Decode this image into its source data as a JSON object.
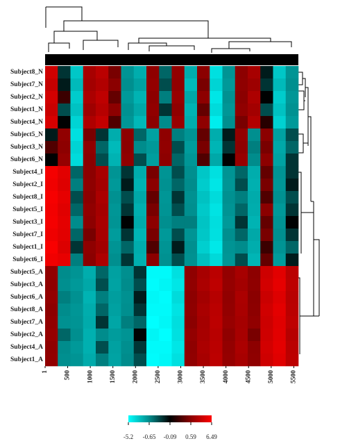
{
  "chart_data": {
    "type": "heatmap",
    "rows": [
      "Subject8_N",
      "Subject7_N",
      "Subject2_N",
      "Subject1_N",
      "Subject4_N",
      "Subject5_N",
      "Subject3_N",
      "Subject6_N",
      "Subject4_I",
      "Subject2_I",
      "Subject8_I",
      "Subject5_I",
      "Subject3_I",
      "Subject7_I",
      "Subject1_I",
      "Subject6_I",
      "Subject5_A",
      "Subject3_A",
      "Subject6_A",
      "Subject8_A",
      "Subject7_A",
      "Subject2_A",
      "Subject4_A",
      "Subject1_A"
    ],
    "bins": [
      1,
      281,
      561,
      841,
      1121,
      1401,
      1681,
      1961,
      2241,
      2521,
      2801,
      3081,
      3361,
      3641,
      3921,
      4201,
      4481,
      4761,
      5041,
      5321,
      5601
    ],
    "xlim": [
      1,
      5601
    ],
    "xticks": [
      1,
      500,
      1000,
      1500,
      2000,
      2500,
      3000,
      3500,
      4000,
      4500,
      5000,
      5500
    ],
    "values": [
      [
        4,
        -0.3,
        -3,
        2,
        3,
        0.5,
        -1,
        -2,
        0.8,
        -0.5,
        1,
        -2,
        0.6,
        -4,
        -1,
        0.7,
        2,
        -0.2,
        -3,
        -1
      ],
      [
        3.5,
        -0.2,
        -2.5,
        1.8,
        2.5,
        0.6,
        -0.8,
        -1.5,
        1,
        -0.4,
        0.9,
        -2.5,
        0.5,
        -3.5,
        -1.2,
        0.8,
        1.5,
        -0.3,
        -2.5,
        -0.8
      ],
      [
        4.2,
        0.2,
        -3.2,
        2.2,
        3.2,
        0.4,
        -1.2,
        -2.2,
        0.7,
        -0.6,
        1.2,
        -1.8,
        0.7,
        -4.2,
        -0.9,
        0.6,
        2.3,
        -0.1,
        -3.2,
        -1.1
      ],
      [
        3.8,
        -0.4,
        -2.8,
        1.6,
        2.8,
        0.7,
        -0.9,
        -1.8,
        0.9,
        -0.3,
        0.8,
        -2.2,
        0.4,
        -3.8,
        -1.1,
        0.9,
        1.8,
        -0.4,
        -2.8,
        -0.9
      ],
      [
        4.5,
        -0.1,
        -3.5,
        2.4,
        3.5,
        0.3,
        -1.1,
        -2.4,
        0.6,
        -0.7,
        1.3,
        -2,
        0.8,
        -4.5,
        -0.8,
        0.5,
        2.5,
        0.1,
        -3.4,
        -1.2
      ],
      [
        -0.2,
        0.9,
        -4,
        0.5,
        -0.3,
        -2,
        0.7,
        -0.5,
        -1.5,
        0.8,
        -0.6,
        -1,
        0.4,
        -2,
        -0.2,
        1,
        -0.8,
        0.6,
        -1.5,
        -0.4
      ],
      [
        0.3,
        0.7,
        -3.5,
        0.8,
        -0.5,
        -2.5,
        0.6,
        -0.7,
        -1.2,
        0.9,
        -0.4,
        -1.3,
        0.5,
        -2.3,
        -0.3,
        0.8,
        -0.6,
        0.5,
        -1.8,
        -0.5
      ],
      [
        -0.1,
        1.1,
        -3.8,
        0.6,
        -0.4,
        -2.2,
        0.8,
        -0.4,
        -1.4,
        0.7,
        -0.5,
        -1.1,
        0.3,
        -1.8,
        -0.1,
        1.2,
        -0.7,
        0.7,
        -1.6,
        -0.3
      ],
      [
        6,
        5,
        -0.5,
        0.7,
        2,
        -1,
        -0.3,
        -2,
        0.5,
        -1,
        -0.4,
        -0.8,
        -3,
        -4,
        -1,
        -0.5,
        -2,
        0.4,
        -1,
        -0.3
      ],
      [
        5.8,
        4.8,
        -0.6,
        0.8,
        1.8,
        -1.2,
        -0.2,
        -2.2,
        0.6,
        -0.9,
        -0.5,
        -0.7,
        -3.2,
        -4.2,
        -1.1,
        -0.4,
        -2.1,
        0.5,
        -1.1,
        -0.2
      ],
      [
        6.1,
        5.2,
        -0.4,
        0.6,
        2.2,
        -0.9,
        -0.4,
        -1.8,
        0.4,
        -1.1,
        -0.3,
        -0.9,
        -2.8,
        -3.8,
        -0.9,
        -0.6,
        -1.9,
        0.3,
        -0.9,
        -0.4
      ],
      [
        5.9,
        4.9,
        -0.5,
        0.9,
        1.9,
        -1.1,
        -0.3,
        -2.1,
        0.5,
        -1,
        -0.4,
        -0.8,
        -3.1,
        -4.1,
        -1,
        -0.5,
        -2,
        0.6,
        -1.2,
        -0.3
      ],
      [
        6,
        5.1,
        -0.7,
        0.7,
        2.1,
        -1,
        -0.1,
        -1.9,
        0.7,
        -0.8,
        -0.6,
        -0.6,
        -2.9,
        -3.9,
        -1.2,
        -0.3,
        -2.2,
        0.4,
        -1,
        -0.1
      ],
      [
        5.7,
        5,
        -0.5,
        0.5,
        2,
        -1.3,
        -0.3,
        -2.3,
        0.5,
        -1.2,
        -0.4,
        -1,
        -3,
        -4,
        -0.8,
        -0.5,
        -1.8,
        0.5,
        -0.8,
        -0.3
      ],
      [
        6.2,
        4.7,
        -0.3,
        0.8,
        1.7,
        -1,
        -0.5,
        -2,
        0.3,
        -1,
        -0.2,
        -0.8,
        -3.3,
        -4.3,
        -1,
        -0.7,
        -2,
        0.2,
        -1,
        -0.5
      ],
      [
        5.8,
        5.3,
        -0.6,
        0.6,
        2.3,
        -0.8,
        -0.3,
        -2.1,
        0.6,
        -0.9,
        -0.4,
        -0.9,
        -2.7,
        -3.7,
        -1.1,
        -0.4,
        -2.3,
        0.4,
        -1.3,
        -0.2
      ],
      [
        0.9,
        -0.7,
        -1,
        -2,
        -0.5,
        -1.5,
        -0.8,
        -0.3,
        -5,
        -5,
        -4,
        0.8,
        2,
        3,
        1,
        2,
        0.7,
        4,
        5,
        3
      ],
      [
        0.8,
        -0.8,
        -1.2,
        -1.8,
        -0.4,
        -1.6,
        -0.7,
        -0.4,
        -5.1,
        -4.8,
        -4.2,
        0.9,
        2.2,
        3.2,
        1.1,
        1.8,
        0.8,
        4.2,
        5.2,
        3.1
      ],
      [
        1,
        -0.6,
        -0.9,
        -2.2,
        -0.6,
        -1.4,
        -0.9,
        -0.2,
        -4.9,
        -5.1,
        -3.8,
        0.7,
        1.8,
        2.8,
        0.9,
        2.2,
        0.6,
        3.8,
        4.8,
        2.9
      ],
      [
        0.7,
        -0.7,
        -1.1,
        -2,
        -0.5,
        -1.5,
        -0.8,
        -0.3,
        -5,
        -5,
        -4.1,
        0.8,
        2.1,
        3,
        1,
        2.1,
        0.7,
        4.1,
        5.1,
        3
      ],
      [
        0.9,
        -0.9,
        -1,
        -1.9,
        -0.3,
        -1.7,
        -0.6,
        -0.5,
        -5.2,
        -4.9,
        -3.9,
        0.6,
        1.9,
        3.1,
        1.2,
        1.9,
        0.9,
        3.9,
        4.9,
        3.2
      ],
      [
        1.1,
        -0.5,
        -0.8,
        -2.1,
        -0.7,
        -1.3,
        -1,
        -0.1,
        -4.8,
        -5.2,
        -4,
        1,
        2,
        2.9,
        0.8,
        2,
        0.5,
        4,
        5,
        2.8
      ],
      [
        0.8,
        -0.7,
        -1.2,
        -2.1,
        -0.4,
        -1.5,
        -0.8,
        -0.3,
        -5,
        -5,
        -4.2,
        0.8,
        2.2,
        3,
        1,
        2.2,
        0.7,
        4.2,
        5.1,
        3
      ],
      [
        0.9,
        -0.8,
        -1,
        -1.9,
        -0.6,
        -1.6,
        -0.7,
        -0.4,
        -5.1,
        -4.9,
        -4,
        0.9,
        2,
        3.1,
        1.1,
        2,
        0.8,
        4,
        4.9,
        3.1
      ]
    ],
    "colorbar": {
      "ticks": [
        -5.2,
        -0.65,
        -0.09,
        0.59,
        6.49
      ],
      "colors": [
        "#00ffff",
        "#008b8b",
        "#000000",
        "#8b0000",
        "#ff0000"
      ]
    }
  }
}
